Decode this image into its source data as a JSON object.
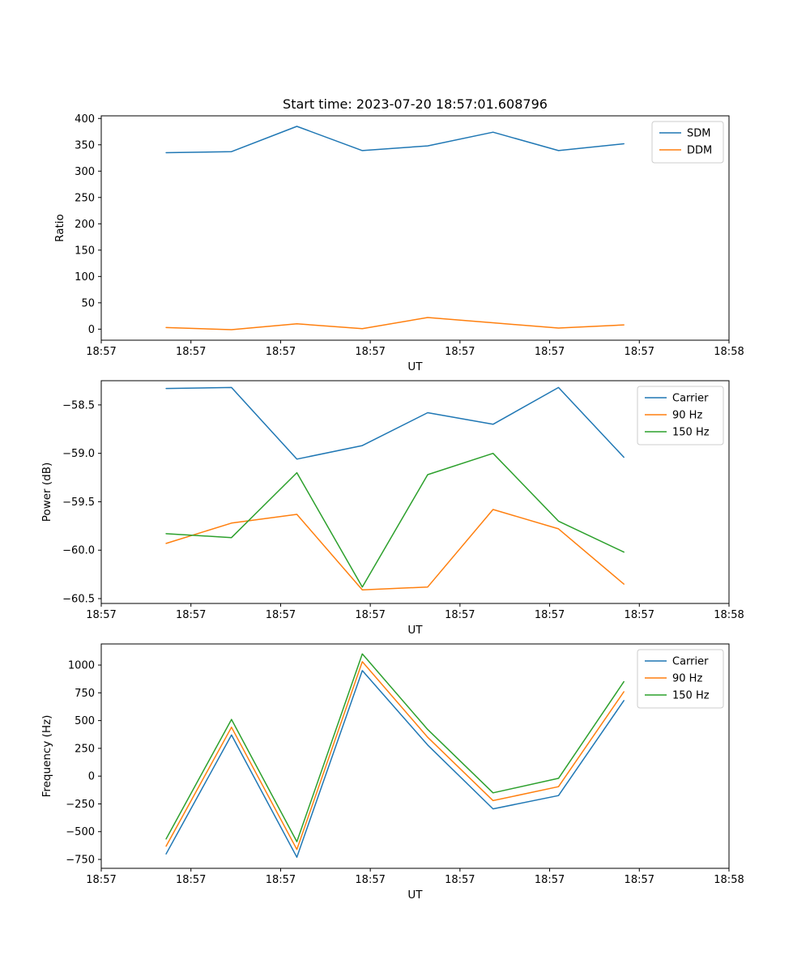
{
  "figure": {
    "background": "#ffffff",
    "axis_color": "#000000",
    "legend_border_color": "#cccccc"
  },
  "chart_data": [
    {
      "type": "line",
      "title": "Start time: 2023-07-20 18:57:01.608796",
      "xlabel": "UT",
      "ylabel": "Ratio",
      "xlim_seconds": [
        0,
        60
      ],
      "x_seconds": [
        6.2,
        12.45,
        18.7,
        24.95,
        31.2,
        37.45,
        43.7,
        49.95
      ],
      "xtick_labels": [
        "18:57",
        "18:57",
        "18:57",
        "18:57",
        "18:57",
        "18:57",
        "18:57",
        "18:58"
      ],
      "ylim": [
        -21,
        405
      ],
      "yticks": [
        0,
        50,
        100,
        150,
        200,
        250,
        300,
        350,
        400
      ],
      "ytick_labels": [
        "0",
        "50",
        "100",
        "150",
        "200",
        "250",
        "300",
        "350",
        "400"
      ],
      "grid": false,
      "legend_position": "upper right",
      "series": [
        {
          "name": "SDM",
          "color": "#1f77b4",
          "values": [
            335,
            337,
            385,
            339,
            348,
            374,
            339,
            352
          ]
        },
        {
          "name": "DDM",
          "color": "#ff7f0e",
          "values": [
            3,
            -1,
            10,
            1,
            22,
            12,
            2,
            8
          ]
        }
      ]
    },
    {
      "type": "line",
      "title": "",
      "xlabel": "UT",
      "ylabel": "Power (dB)",
      "xlim_seconds": [
        0,
        60
      ],
      "x_seconds": [
        6.2,
        12.45,
        18.7,
        24.95,
        31.2,
        37.45,
        43.7,
        49.95
      ],
      "xtick_labels": [
        "18:57",
        "18:57",
        "18:57",
        "18:57",
        "18:57",
        "18:57",
        "18:57",
        "18:58"
      ],
      "ylim": [
        -60.55,
        -58.25
      ],
      "yticks": [
        -58.5,
        -59.0,
        -59.5,
        -60.0,
        -60.5
      ],
      "ytick_labels": [
        "−58.5",
        "−59.0",
        "−59.5",
        "−60.0",
        "−60.5"
      ],
      "grid": false,
      "legend_position": "upper right",
      "series": [
        {
          "name": "Carrier",
          "color": "#1f77b4",
          "values": [
            -58.33,
            -58.32,
            -59.06,
            -58.92,
            -58.58,
            -58.7,
            -58.32,
            -59.04
          ]
        },
        {
          "name": "90 Hz",
          "color": "#ff7f0e",
          "values": [
            -59.93,
            -59.72,
            -59.63,
            -60.41,
            -60.38,
            -59.58,
            -59.78,
            -60.35
          ]
        },
        {
          "name": "150 Hz",
          "color": "#2ca02c",
          "values": [
            -59.83,
            -59.87,
            -59.2,
            -60.38,
            -59.22,
            -59.0,
            -59.7,
            -60.02
          ]
        }
      ]
    },
    {
      "type": "line",
      "title": "",
      "xlabel": "UT",
      "ylabel": "Frequency (Hz)",
      "xlim_seconds": [
        0,
        60
      ],
      "x_seconds": [
        6.2,
        12.45,
        18.7,
        24.95,
        31.2,
        37.45,
        43.7,
        49.95
      ],
      "xtick_labels": [
        "18:57",
        "18:57",
        "18:57",
        "18:57",
        "18:57",
        "18:57",
        "18:57",
        "18:58"
      ],
      "ylim": [
        -830,
        1190
      ],
      "yticks": [
        -750,
        -500,
        -250,
        0,
        250,
        500,
        750,
        1000
      ],
      "ytick_labels": [
        "−750",
        "−500",
        "−250",
        "0",
        "250",
        "500",
        "750",
        "1000"
      ],
      "grid": false,
      "legend_position": "upper right",
      "series": [
        {
          "name": "Carrier",
          "color": "#1f77b4",
          "values": [
            -700,
            370,
            -730,
            950,
            280,
            -295,
            -175,
            680
          ]
        },
        {
          "name": "90 Hz",
          "color": "#ff7f0e",
          "values": [
            -630,
            440,
            -660,
            1030,
            350,
            -220,
            -95,
            760
          ]
        },
        {
          "name": "150 Hz",
          "color": "#2ca02c",
          "values": [
            -565,
            510,
            -590,
            1100,
            420,
            -150,
            -20,
            850
          ]
        }
      ]
    }
  ]
}
